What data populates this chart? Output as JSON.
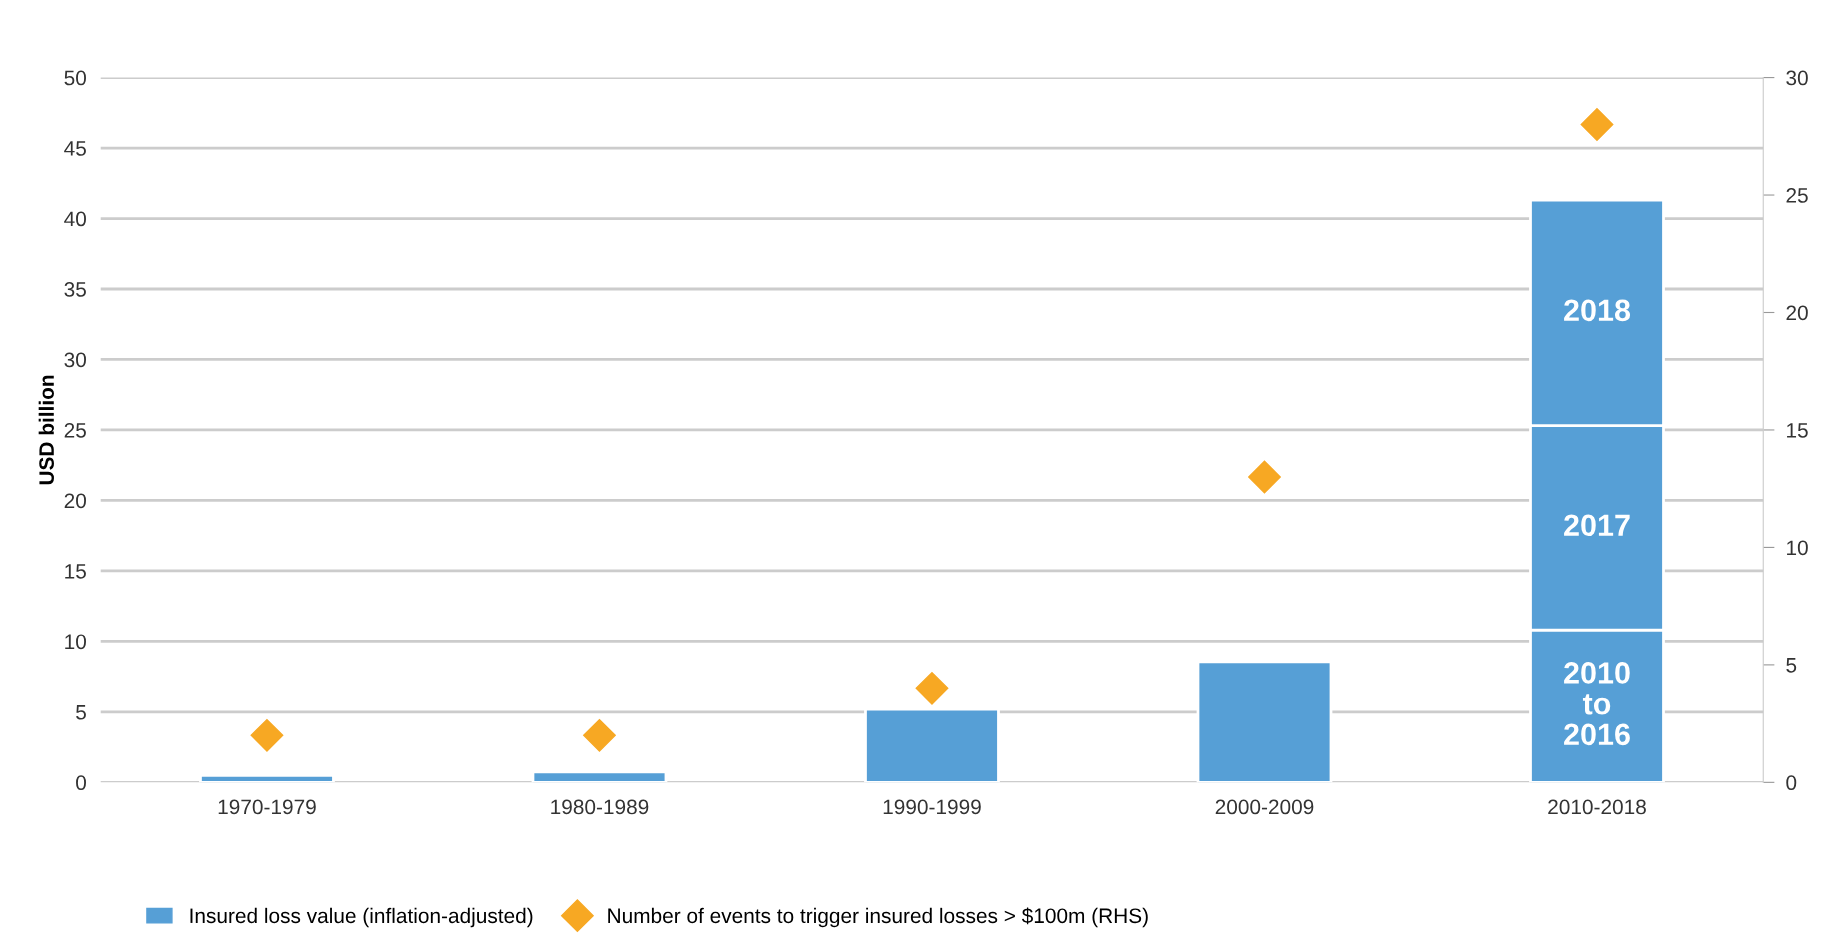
{
  "chart_data": {
    "type": "bar",
    "stacked": true,
    "ylabel": "USD billion",
    "categories": [
      "1970-1979",
      "1980-1989",
      "1990-1999",
      "2000-2009",
      "2010-2018"
    ],
    "series": [
      {
        "name": "Insured loss value (inflation-adjusted)",
        "color": "#569fd6",
        "values": [
          0.5,
          0.75,
          5.2,
          8.55,
          10.8
        ]
      },
      {
        "color": "#569fd6",
        "values": [
          null,
          null,
          null,
          null,
          14.5
        ]
      },
      {
        "color": "#569fd6",
        "values": [
          null,
          null,
          null,
          null,
          16.0
        ]
      },
      {
        "name": "Number of events to trigger insured losses > $100m (RHS)",
        "type": "scatter",
        "axis": "y2",
        "marker": "diamond",
        "color": "#f7a823",
        "values": [
          2.0,
          2.0,
          4.0,
          13.0,
          28.0
        ]
      }
    ],
    "annotations": [
      "2010\nto\n2016",
      "2017",
      "2018"
    ],
    "ylim": [
      0,
      50
    ],
    "yticks": [
      0,
      5,
      10,
      15,
      20,
      25,
      30,
      35,
      40,
      45,
      50
    ],
    "y2lim": [
      0,
      30
    ],
    "y2ticks": [
      0,
      5,
      10,
      15,
      20,
      25,
      30
    ],
    "grid": "y",
    "legend": "bottom"
  }
}
